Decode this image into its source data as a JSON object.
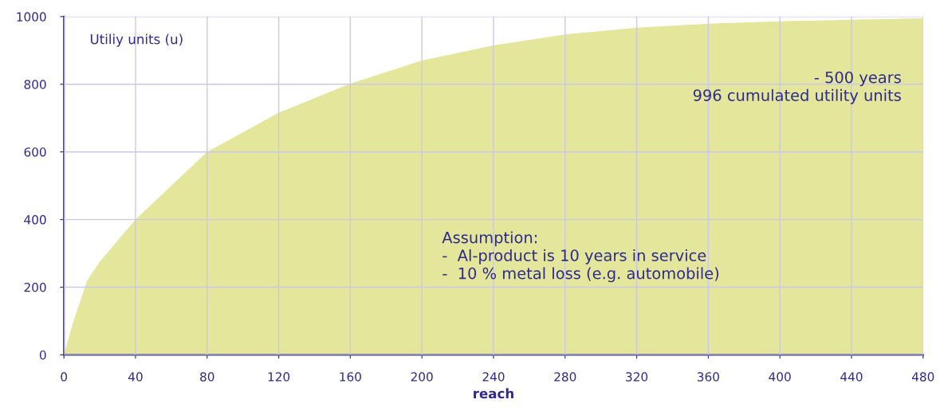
{
  "chart_data": {
    "type": "area",
    "ylabel": "Utiliy units (u)",
    "xlabel": "reach",
    "x": [
      0,
      5,
      13,
      20,
      40,
      80,
      120,
      160,
      200,
      240,
      280,
      320,
      360,
      400,
      440,
      480
    ],
    "series": [
      {
        "color": "#e4e69c",
        "values": [
          0,
          94,
          220,
          275,
          400,
          600,
          716,
          802,
          870,
          915,
          947,
          967,
          979,
          986,
          991,
          995
        ]
      }
    ],
    "xlim": [
      0,
      480
    ],
    "ylim": [
      0,
      1000
    ],
    "xticks": [
      0,
      40,
      80,
      120,
      160,
      200,
      240,
      280,
      320,
      360,
      400,
      440,
      480
    ],
    "yticks": [
      0,
      200,
      400,
      600,
      800,
      1000
    ],
    "grid": true,
    "annotations": [
      "- 500 years\n996 cumulated utility units",
      "Assumption:\n-  Al-product is 10 years in service\n-  10 % metal loss (e.g. automobile)"
    ]
  }
}
